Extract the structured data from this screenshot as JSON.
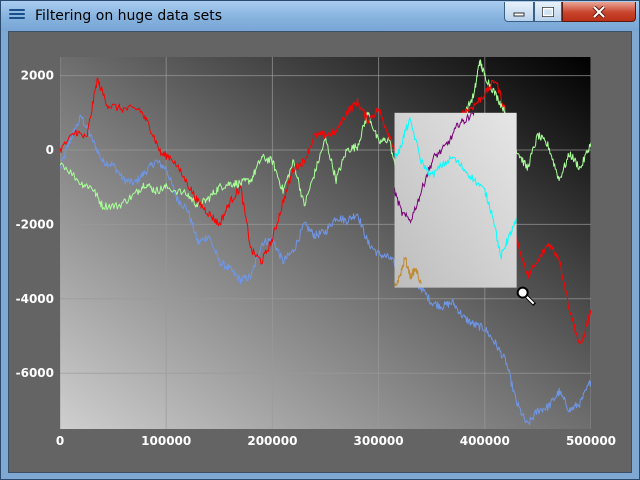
{
  "window": {
    "title": "Filtering on huge data sets"
  },
  "colors": {
    "red": "#ff0000",
    "green": "#a8ff98",
    "blue": "#6f96e6",
    "purple": "#780078",
    "cyan": "#00ffff",
    "gold": "#c08a30",
    "frame_dark": "#646464"
  },
  "chart_data": {
    "type": "line",
    "title": "",
    "xlabel": "",
    "ylabel": "",
    "xlim": [
      0,
      500000
    ],
    "ylim": [
      -7500,
      2500
    ],
    "grid": true,
    "x_ticks": [
      "0",
      "100000",
      "200000",
      "300000",
      "400000",
      "500000"
    ],
    "x_tick_values": [
      0,
      100000,
      200000,
      300000,
      400000,
      500000
    ],
    "y_ticks": [
      "2000",
      "0",
      "-2000",
      "-4000",
      "-6000"
    ],
    "y_tick_values": [
      2000,
      0,
      -2000,
      -4000,
      -6000
    ],
    "zoom_rect": {
      "x0": 315000,
      "x1": 430000,
      "y0": -3700,
      "y1": 1000
    },
    "series": [
      {
        "name": "red",
        "color_key": "red",
        "x": [
          0,
          15000,
          25000,
          35000,
          45000,
          60000,
          75000,
          85000,
          95000,
          105000,
          120000,
          130000,
          140000,
          150000,
          160000,
          170000,
          180000,
          190000,
          200000,
          210000,
          220000,
          230000,
          240000,
          250000,
          260000,
          270000,
          280000,
          290000,
          300000,
          310000,
          320000,
          330000,
          340000,
          350000,
          360000,
          370000,
          380000,
          390000,
          400000,
          410000,
          420000,
          430000,
          440000,
          450000,
          460000,
          470000,
          480000,
          490000,
          500000
        ],
        "y": [
          0,
          500,
          300,
          1900,
          1200,
          1100,
          1100,
          600,
          -100,
          -200,
          -900,
          -1400,
          -1700,
          -2000,
          -1400,
          -1000,
          -2700,
          -3000,
          -2400,
          -1400,
          -500,
          -300,
          400,
          400,
          500,
          1000,
          1300,
          800,
          1100,
          400,
          -300,
          -900,
          -1200,
          -600,
          100,
          700,
          1000,
          1200,
          1500,
          1900,
          1000,
          -2400,
          -3400,
          -3000,
          -2500,
          -2900,
          -4300,
          -5300,
          -4300
        ]
      },
      {
        "name": "green",
        "color_key": "green",
        "x": [
          0,
          20000,
          30000,
          40000,
          55000,
          70000,
          80000,
          90000,
          100000,
          120000,
          130000,
          140000,
          150000,
          160000,
          170000,
          180000,
          190000,
          200000,
          210000,
          220000,
          230000,
          240000,
          250000,
          260000,
          270000,
          280000,
          290000,
          300000,
          310000,
          320000,
          330000,
          340000,
          350000,
          360000,
          370000,
          380000,
          390000,
          395000,
          400000,
          410000,
          420000,
          430000,
          440000,
          450000,
          460000,
          470000,
          480000,
          490000,
          500000
        ],
        "y": [
          -300,
          -900,
          -1000,
          -1500,
          -1500,
          -1200,
          -900,
          -1100,
          -1000,
          -1200,
          -1500,
          -1300,
          -1000,
          -900,
          -900,
          -800,
          -200,
          -300,
          -1100,
          -300,
          -1500,
          -600,
          300,
          -800,
          0,
          100,
          1000,
          200,
          300,
          -1100,
          -1000,
          -800,
          -200,
          -300,
          100,
          900,
          1500,
          2400,
          2000,
          1500,
          1000,
          0,
          -500,
          400,
          100,
          -800,
          -100,
          -500,
          200
        ]
      },
      {
        "name": "blue",
        "color_key": "blue",
        "x": [
          0,
          10000,
          20000,
          30000,
          40000,
          50000,
          60000,
          70000,
          80000,
          90000,
          100000,
          110000,
          120000,
          130000,
          140000,
          150000,
          160000,
          170000,
          180000,
          190000,
          200000,
          210000,
          220000,
          230000,
          240000,
          250000,
          260000,
          270000,
          280000,
          290000,
          300000,
          310000,
          320000,
          330000,
          340000,
          350000,
          360000,
          370000,
          380000,
          390000,
          400000,
          410000,
          420000,
          430000,
          440000,
          450000,
          460000,
          470000,
          480000,
          490000,
          500000
        ],
        "y": [
          -500,
          300,
          900,
          300,
          -300,
          -400,
          -800,
          -900,
          -600,
          -300,
          -500,
          -1300,
          -1600,
          -2500,
          -2300,
          -3000,
          -3200,
          -3500,
          -3400,
          -2500,
          -2400,
          -3000,
          -2700,
          -2000,
          -2300,
          -2200,
          -1800,
          -1900,
          -1700,
          -2500,
          -2800,
          -2900,
          -3200,
          -3500,
          -3700,
          -4100,
          -4200,
          -4100,
          -4500,
          -4700,
          -4800,
          -5200,
          -5700,
          -6800,
          -7400,
          -7000,
          -6900,
          -6500,
          -7000,
          -6800,
          -6200
        ]
      },
      {
        "name": "purple",
        "color_key": "purple",
        "x": [
          315000,
          322000,
          330000,
          338000,
          345000,
          352000,
          360000,
          368000,
          375000,
          382000,
          388000,
          395000
        ],
        "y": [
          -1100,
          -1700,
          -1900,
          -1300,
          -700,
          -200,
          0,
          300,
          700,
          800,
          1000,
          1200
        ],
        "clip_to_zoom": true
      },
      {
        "name": "cyan",
        "color_key": "cyan",
        "x": [
          315000,
          320000,
          325000,
          330000,
          340000,
          350000,
          360000,
          370000,
          380000,
          390000,
          400000,
          408000,
          415000,
          420000,
          425000,
          430000
        ],
        "y": [
          -200,
          0,
          500,
          800,
          -300,
          -700,
          -400,
          -200,
          -500,
          -800,
          -1100,
          -1800,
          -2900,
          -2500,
          -2200,
          -1900
        ],
        "clip_to_zoom": true
      },
      {
        "name": "gold",
        "color_key": "gold",
        "x": [
          315000,
          320000,
          325000,
          330000,
          335000,
          340000
        ],
        "y": [
          -3700,
          -3400,
          -2900,
          -3400,
          -3200,
          -3600
        ],
        "clip_to_zoom": true
      }
    ]
  }
}
